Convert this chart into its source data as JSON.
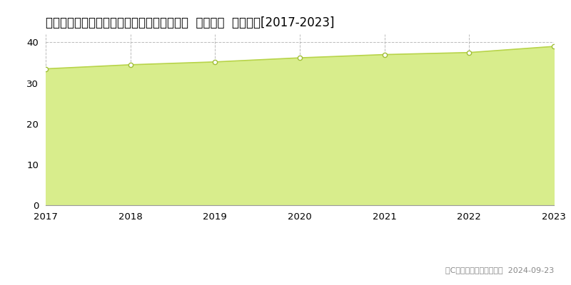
{
  "title": "兵庫県神戸市垂水区舞多聞西７丁目５番２０  公示地価  地価推移[2017-2023]",
  "years": [
    2017,
    2018,
    2019,
    2020,
    2021,
    2022,
    2023
  ],
  "values": [
    33.5,
    34.5,
    35.2,
    36.2,
    37.0,
    37.5,
    39.0
  ],
  "line_color": "#b8d44a",
  "fill_color": "#d8ed8c",
  "marker_face_color": "#ffffff",
  "marker_edge_color": "#a0be38",
  "background_color": "#ffffff",
  "grid_color": "#aaaaaa",
  "ylim": [
    0,
    42
  ],
  "yticks": [
    0,
    10,
    20,
    30,
    40
  ],
  "copyright_text": "（C）土地価格ドットコム  2024-09-23",
  "title_fontsize": 12,
  "axis_fontsize": 9.5,
  "legend_fontsize": 9.5,
  "copyright_fontsize": 8
}
